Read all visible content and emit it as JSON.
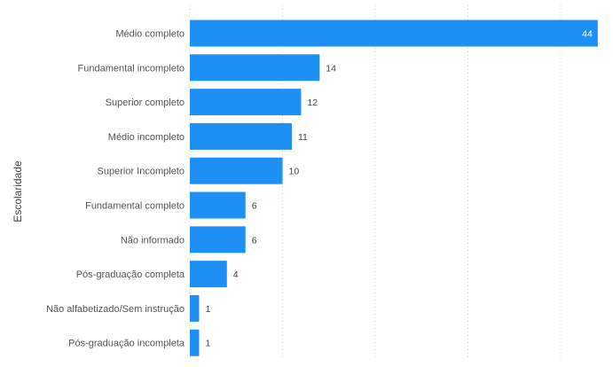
{
  "chart_data": {
    "type": "bar",
    "orientation": "horizontal",
    "ylabel": "Escolaridade",
    "xlabel": "",
    "categories": [
      "Médio completo",
      "Fundamental incompleto",
      "Superior completo",
      "Médio incompleto",
      "Superior Incompleto",
      "Fundamental completo",
      "Não informado",
      "Pós-graduação completa",
      "Não alfabetizado/Sem instrução",
      "Pós-graduação incompleta"
    ],
    "values": [
      44,
      14,
      12,
      11,
      10,
      6,
      6,
      4,
      1,
      1
    ],
    "xlim": [
      0,
      45
    ],
    "gridlines_x": [
      0,
      10,
      20,
      30,
      40
    ],
    "grid": "vertical dotted",
    "bar_color": "#1e8ff5",
    "data_labels": true
  }
}
